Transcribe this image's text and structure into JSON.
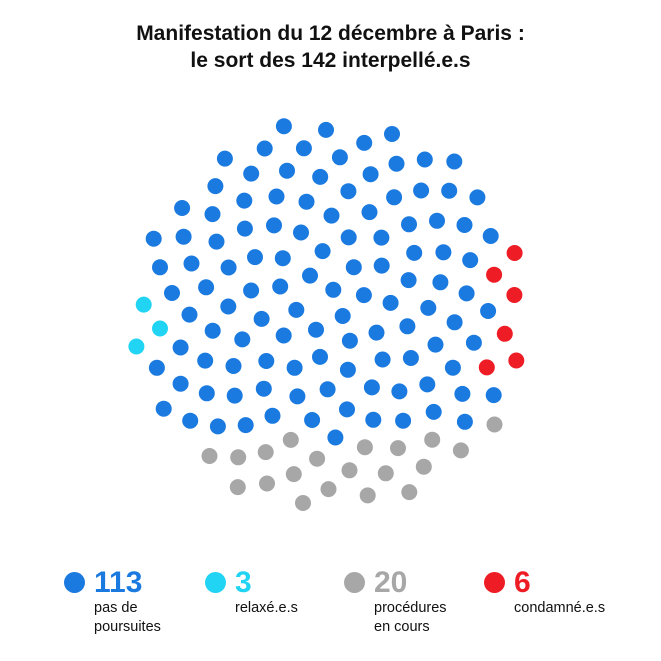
{
  "chart_data": {
    "type": "dot-cluster",
    "title_lines": [
      "Manifestation du 12 décembre à Paris :",
      "le sort des 142 interpellé.e.s"
    ],
    "total": 142,
    "series": [
      {
        "name": "pas de poursuites",
        "count_label": "113",
        "value": 113,
        "label_lines": [
          "pas de",
          "poursuites"
        ],
        "color": "#1b7ae0"
      },
      {
        "name": "relaxé.e.s",
        "count_label": "3",
        "value": 3,
        "label_lines": [
          "relaxé.e.s"
        ],
        "color": "#22d4f4"
      },
      {
        "name": "procédures en cours",
        "count_label": "20",
        "value": 20,
        "label_lines": [
          "procédures",
          "en cours"
        ],
        "color": "#a7a7a7"
      },
      {
        "name": "condamné.e.s",
        "count_label": "6",
        "value": 6,
        "label_lines": [
          "condamné.e.s"
        ],
        "color": "#ee1c24"
      }
    ]
  }
}
